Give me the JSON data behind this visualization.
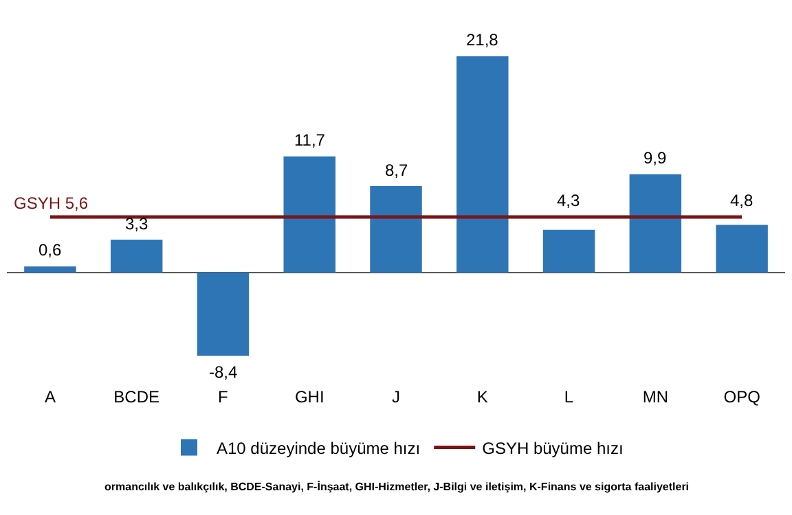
{
  "chart_data": {
    "type": "bar",
    "categories": [
      "A",
      "BCDE",
      "F",
      "GHI",
      "J",
      "K",
      "L",
      "MN",
      "OPQ"
    ],
    "series": [
      {
        "name": "A10 düzeyinde büyüme hızı",
        "color": "#2e75b6",
        "values": [
          0.6,
          3.3,
          -8.4,
          11.7,
          8.7,
          21.8,
          4.3,
          9.9,
          4.8
        ],
        "value_labels": [
          "0,6",
          "3,3",
          "-8,4",
          "11,7",
          "8,7",
          "21,8",
          "4,3",
          "9,9",
          "4,8"
        ]
      },
      {
        "name": "GSYH büyüme hızı",
        "type": "line",
        "color": "#7b1416",
        "values": [
          5.6,
          5.6,
          5.6,
          5.6,
          5.6,
          5.6,
          5.6,
          5.6,
          5.6
        ]
      }
    ],
    "annotations": [
      {
        "text": "GSYH 5,6",
        "x": "A",
        "y": 5.6
      },
      "ormancılık ve balıkçılık, BCDE-Sanayi, F-İnşaat, GHI-Hizmetler, J-Bilgi ve iletişim, K-Finans ve sigorta faaliyetleri"
    ],
    "tick_labels": "x",
    "legend": "bottom",
    "marker": "none",
    "line_style": "solid"
  }
}
